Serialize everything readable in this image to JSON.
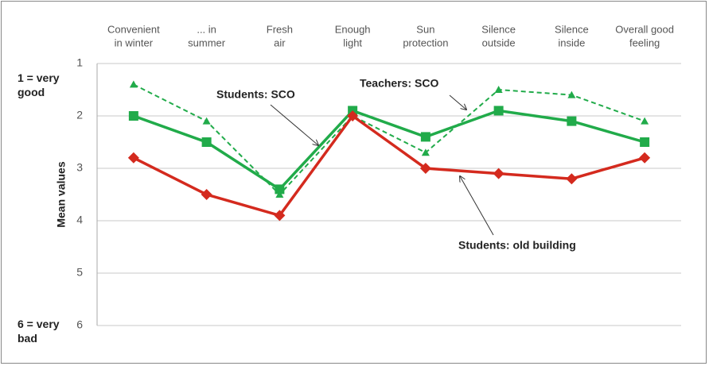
{
  "chart_data": {
    "type": "line",
    "categories": [
      "Convenient\nin winter",
      "... in\nsummer",
      "Fresh\nair",
      "Enough\nlight",
      "Sun\nprotection",
      "Silence\noutside",
      "Silence\ninside",
      "Overall good\nfeeling"
    ],
    "y_label": "Mean values",
    "annotations": [
      "1 = very\ngood",
      "6 = very\nbad"
    ],
    "ylim": [
      1,
      6
    ],
    "yticks": [
      1,
      2,
      3,
      4,
      5,
      6
    ],
    "y_inverted": true,
    "grid": true,
    "series": [
      {
        "name": "Students: SCO",
        "color": "#21ab4a",
        "dash": false,
        "marker": "square",
        "values": [
          2.0,
          2.5,
          3.4,
          1.9,
          2.4,
          1.9,
          2.1,
          2.5
        ]
      },
      {
        "name": "Teachers: SCO",
        "color": "#21ab4a",
        "dash": true,
        "marker": "triangle",
        "values": [
          1.4,
          2.1,
          3.5,
          2.0,
          2.7,
          1.5,
          1.6,
          2.1
        ]
      },
      {
        "name": "Students: old building",
        "color": "#d42a1e",
        "dash": false,
        "marker": "diamond",
        "values": [
          2.8,
          3.5,
          3.9,
          2.0,
          3.0,
          3.1,
          3.2,
          2.8
        ]
      }
    ]
  }
}
